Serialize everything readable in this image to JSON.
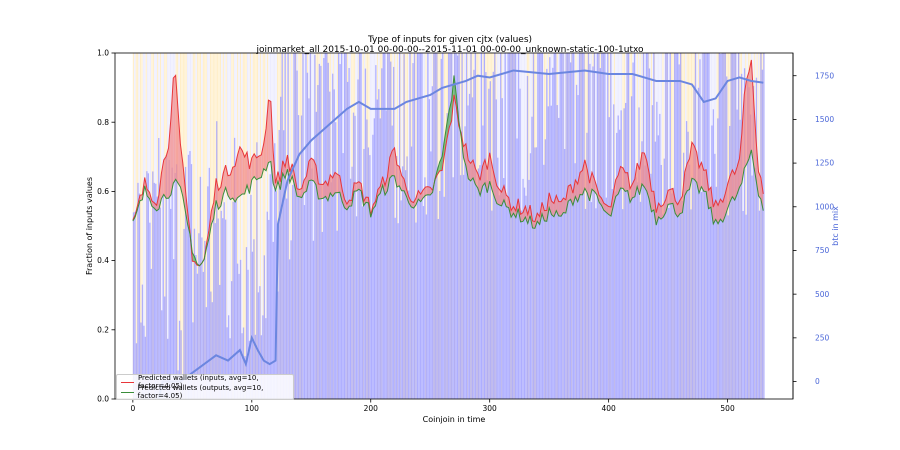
{
  "header": {
    "title": "Type of inputs for given cjtx (values)",
    "subtitle": "joinmarket_all 2015-10-01 00-00-00--2015-11-01 00-00-00_unknown-static-100-1utxo"
  },
  "chart_data": {
    "type": "line",
    "title": "Type of inputs for given cjtx (values)",
    "subtitle": "joinmarket_all 2015-10-01 00-00-00--2015-11-01 00-00-00_unknown-static-100-1utxo",
    "xlabel": "Coinjoin in time",
    "ylabel": "Fraction of inputs values",
    "y2label": "btc in mix",
    "xlim": [
      -15,
      555
    ],
    "ylim": [
      0.0,
      1.0
    ],
    "y2lim": [
      -100,
      1880
    ],
    "xticks": [
      0,
      100,
      200,
      300,
      400,
      500
    ],
    "yticks": [
      0.0,
      0.2,
      0.4,
      0.6,
      0.8,
      1.0
    ],
    "y2ticks": [
      0,
      250,
      500,
      750,
      1000,
      1250,
      1500,
      1750
    ],
    "legend_position": "lower-left",
    "grid": false,
    "colors": {
      "inputs": "#e8363a",
      "outputs": "#3a8d3a",
      "fill_inputs_higher": "#f28b8b",
      "fill_outputs_higher": "#5fb55f",
      "btc_line": "#6b86e0",
      "btc_bars": "#9999ff",
      "background_bars": "#ffe7b0"
    },
    "series": [
      {
        "name": "Predicted wallets (inputs, avg=10, factor=4.05)",
        "x": [
          0,
          10,
          20,
          30,
          35,
          40,
          50,
          55,
          60,
          70,
          80,
          90,
          100,
          110,
          115,
          120,
          130,
          140,
          150,
          160,
          170,
          180,
          190,
          200,
          210,
          220,
          230,
          240,
          250,
          260,
          270,
          280,
          290,
          300,
          310,
          320,
          330,
          340,
          350,
          360,
          370,
          380,
          390,
          400,
          410,
          420,
          430,
          440,
          450,
          460,
          470,
          480,
          490,
          500,
          510,
          515,
          520,
          525,
          530
        ],
        "values": [
          0.5,
          0.62,
          0.58,
          0.75,
          0.96,
          0.72,
          0.42,
          0.38,
          0.4,
          0.62,
          0.66,
          0.72,
          0.68,
          0.73,
          0.91,
          0.62,
          0.7,
          0.6,
          0.68,
          0.62,
          0.66,
          0.58,
          0.62,
          0.55,
          0.62,
          0.72,
          0.6,
          0.58,
          0.6,
          0.66,
          0.86,
          0.72,
          0.64,
          0.7,
          0.6,
          0.56,
          0.55,
          0.52,
          0.58,
          0.56,
          0.62,
          0.68,
          0.6,
          0.54,
          0.66,
          0.62,
          0.72,
          0.56,
          0.6,
          0.58,
          0.72,
          0.66,
          0.55,
          0.62,
          0.68,
          0.9,
          0.98,
          0.7,
          0.6
        ]
      },
      {
        "name": "Predicted wallets (outputs, avg=10, factor=4.05)",
        "x": [
          0,
          10,
          20,
          30,
          35,
          40,
          50,
          55,
          60,
          70,
          80,
          90,
          100,
          110,
          115,
          120,
          130,
          140,
          150,
          160,
          170,
          180,
          190,
          200,
          210,
          220,
          230,
          240,
          250,
          260,
          270,
          280,
          290,
          300,
          310,
          320,
          330,
          340,
          350,
          360,
          370,
          380,
          390,
          400,
          410,
          420,
          430,
          440,
          450,
          460,
          470,
          480,
          490,
          500,
          510,
          515,
          520,
          525,
          530
        ],
        "values": [
          0.5,
          0.6,
          0.56,
          0.6,
          0.62,
          0.6,
          0.44,
          0.38,
          0.4,
          0.56,
          0.6,
          0.58,
          0.62,
          0.66,
          0.7,
          0.6,
          0.66,
          0.58,
          0.62,
          0.58,
          0.6,
          0.56,
          0.6,
          0.54,
          0.6,
          0.64,
          0.58,
          0.56,
          0.58,
          0.7,
          0.92,
          0.66,
          0.6,
          0.62,
          0.56,
          0.54,
          0.52,
          0.5,
          0.54,
          0.52,
          0.58,
          0.6,
          0.58,
          0.52,
          0.6,
          0.58,
          0.62,
          0.52,
          0.56,
          0.54,
          0.62,
          0.6,
          0.5,
          0.55,
          0.6,
          0.66,
          0.72,
          0.62,
          0.55
        ]
      },
      {
        "name": "btc in mix",
        "axis": "right",
        "x": [
          0,
          20,
          25,
          40,
          50,
          60,
          70,
          80,
          90,
          95,
          100,
          105,
          110,
          115,
          120,
          122,
          130,
          140,
          150,
          170,
          180,
          190,
          200,
          210,
          220,
          230,
          250,
          260,
          270,
          280,
          290,
          300,
          320,
          350,
          380,
          400,
          420,
          430,
          440,
          460,
          470,
          480,
          490,
          500,
          510,
          520,
          530
        ],
        "values": [
          -300,
          -150,
          0,
          0,
          50,
          100,
          150,
          120,
          180,
          100,
          250,
          180,
          120,
          100,
          120,
          900,
          1150,
          1300,
          1380,
          1500,
          1560,
          1600,
          1560,
          1560,
          1560,
          1600,
          1640,
          1680,
          1700,
          1720,
          1750,
          1740,
          1780,
          1760,
          1780,
          1760,
          1760,
          1740,
          1720,
          1720,
          1700,
          1600,
          1620,
          1720,
          1740,
          1720,
          1710
        ]
      }
    ]
  }
}
